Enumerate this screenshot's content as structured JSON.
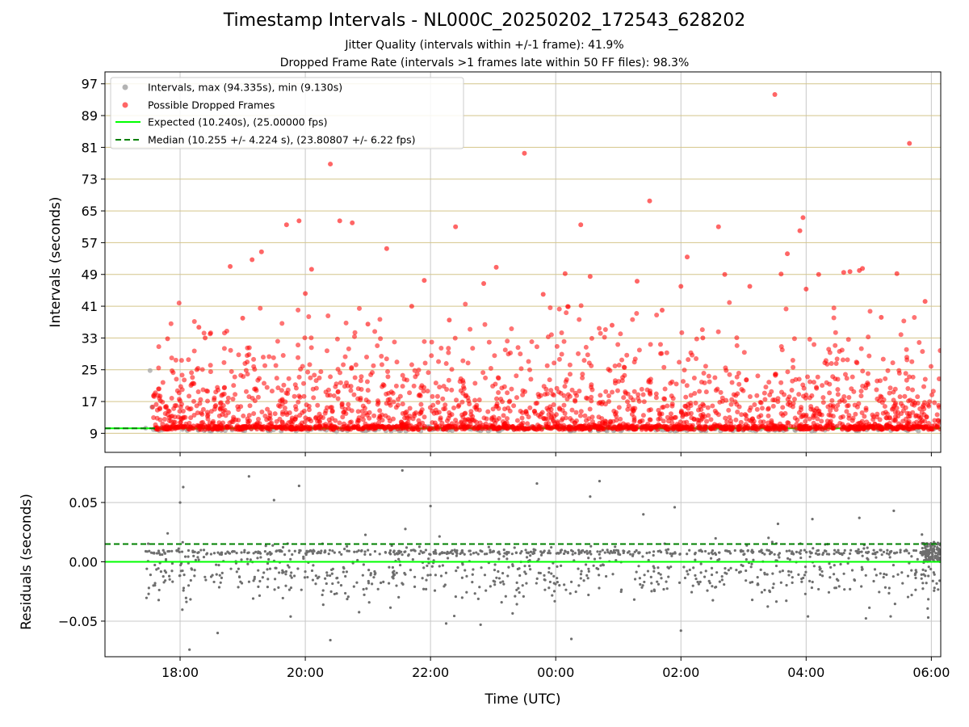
{
  "title": "Timestamp Intervals - NL000C_20250202_172543_628202",
  "subtitle1": "Jitter Quality (intervals within +/-1 frame): 41.9%",
  "subtitle2": "Dropped Frame Rate (intervals >1 frames late within 50 FF files): 98.3%",
  "colors": {
    "interval_points": "#a0a0a0",
    "dropped_points": "#ff0000",
    "expected_line": "#00ff00",
    "median_line": "#008000",
    "residual_points": "#6e6e6e",
    "hgrid_top": "#d4c58a",
    "grid": "#c8c8c8"
  },
  "chart_data": [
    {
      "type": "scatter",
      "panel": "top",
      "xlabel": "",
      "ylabel": "Intervals (seconds)",
      "x_unit": "hours since 00:00 UTC (continuous across midnight)",
      "xlim": [
        -7.2,
        6.15
      ],
      "ylim": [
        4.2,
        100.0
      ],
      "yticks": [
        9,
        17,
        25,
        33,
        41,
        49,
        57,
        65,
        73,
        81,
        89,
        97
      ],
      "ytick_labels": [
        "9",
        "17",
        "25",
        "33",
        "41",
        "49",
        "57",
        "65",
        "73",
        "81",
        "89",
        "97"
      ],
      "grid": "vertical at x ticks, horizontal at y ticks",
      "legend_position": "top-left",
      "legend": [
        "Intervals, max (94.335s), min (9.130s)",
        "Possible Dropped Frames",
        "Expected (10.240s), (25.00000 fps)",
        "Median (10.255 +/- 4.224 s), (23.80807 +/- 6.22 fps)"
      ],
      "series": [
        {
          "name": "Intervals, max (94.335s), min (9.130s)",
          "kind": "scatter",
          "note": "dense band of points along ~10.2 s spanning full range",
          "x": [
            -6.55,
            -6.48,
            -6.45,
            -6.3,
            -5.9,
            -5.5,
            -4.6,
            -3.5,
            -3.1,
            -2.5,
            -1.8,
            -1.2,
            -0.5,
            0.3,
            0.8,
            1.6,
            2.4,
            2.9,
            3.4,
            3.9,
            4.3,
            4.8,
            5.2,
            5.6,
            6.0
          ],
          "y": [
            10.3,
            24.8,
            15.6,
            10.2,
            10.1,
            9.5,
            9.8,
            9.4,
            9.8,
            9.6,
            10.0,
            9.6,
            9.9,
            9.7,
            10.0,
            9.8,
            9.6,
            9.9,
            9.7,
            10.0,
            9.8,
            9.6,
            10.0,
            9.9,
            10.1
          ]
        },
        {
          "name": "Possible Dropped Frames",
          "kind": "scatter",
          "note": "thick band at ~10.3-10.5 s from ~17:37 to end plus scattered outliers",
          "band": {
            "x_from": -6.4,
            "x_to": 6.15,
            "y": 10.4
          },
          "outliers_x": [
            -3.6,
            -3.45,
            -3.25,
            -2.7,
            -1.6,
            -0.5,
            1.5,
            2.6,
            3.5,
            3.9,
            3.95,
            4.9,
            5.65,
            -4.3,
            -4.1,
            -3.9,
            -5.2,
            -4.85,
            -4.7,
            -2.1,
            -1.15,
            -0.95,
            0.15,
            0.4,
            0.55,
            1.3,
            2.0,
            2.1,
            2.7,
            3.6,
            3.7,
            4.2,
            4.6,
            4.85,
            5.45,
            -6.2,
            -5.7,
            -5.6,
            -5.0,
            -4.0,
            -3.0,
            -2.3,
            -1.7,
            -0.2,
            0.9,
            1.7,
            2.35,
            3.1,
            4.0,
            4.7,
            5.2,
            5.9
          ],
          "outliers_y": [
            76.8,
            62.5,
            62.0,
            55.5,
            61.0,
            79.5,
            67.5,
            61.0,
            94.3,
            60.0,
            63.3,
            50.5,
            82.0,
            61.5,
            62.5,
            50.3,
            51.0,
            52.7,
            54.7,
            47.5,
            46.7,
            50.8,
            49.2,
            61.5,
            48.5,
            47.3,
            46.0,
            53.4,
            49.0,
            49.1,
            54.2,
            49.0,
            49.5,
            50.0,
            49.2,
            32.8,
            35.7,
            33.0,
            38.0,
            44.2,
            36.5,
            41.0,
            37.5,
            44.0,
            36.2,
            40.0,
            33.0,
            46.0,
            45.3,
            49.7,
            38.2,
            42.2
          ]
        },
        {
          "name": "Expected (10.240s), (25.00000 fps)",
          "kind": "hline",
          "y": 10.24
        },
        {
          "name": "Median (10.255 +/- 4.224 s), (23.80807 +/- 6.22 fps)",
          "kind": "hline",
          "style": "dashed",
          "y": 10.255
        }
      ]
    },
    {
      "type": "scatter",
      "panel": "bottom",
      "xlabel": "Time (UTC)",
      "ylabel": "Residuals (seconds)",
      "x_unit": "hours since 00:00 UTC (continuous across midnight)",
      "xlim": [
        -7.2,
        6.15
      ],
      "ylim": [
        -0.08,
        0.08
      ],
      "yticks": [
        -0.05,
        0.0,
        0.05
      ],
      "ytick_labels": [
        "−0.05",
        "0.00",
        "0.05"
      ],
      "xticks": [
        -6,
        -4,
        -2,
        0,
        2,
        4,
        6
      ],
      "xtick_labels": [
        "18:00",
        "20:00",
        "22:00",
        "00:00",
        "02:00",
        "04:00",
        "06:00"
      ],
      "grid": "both",
      "series": [
        {
          "name": "",
          "kind": "scatter",
          "note": "residual points, most within -0.035..0.02, with cluster near 0.008",
          "x": [
            -5.95,
            -5.85,
            -5.4,
            -4.9,
            -4.1,
            -3.6,
            -2.45,
            -2.0,
            -1.75,
            -0.3,
            0.25,
            0.55,
            0.7,
            1.9,
            2.0,
            3.55,
            4.1,
            4.85,
            5.35,
            5.4,
            5.85,
            5.95,
            6.05,
            -6.0,
            -4.5,
            -1.2,
            1.4
          ],
          "y": [
            0.063,
            -0.074,
            -0.06,
            0.072,
            0.064,
            -0.066,
            0.077,
            0.047,
            -0.052,
            0.066,
            -0.065,
            0.055,
            0.068,
            0.046,
            -0.058,
            0.032,
            0.036,
            0.037,
            -0.046,
            0.043,
            0.023,
            -0.047,
            -0.022,
            0.05,
            0.052,
            -0.053,
            0.04
          ],
          "note2": "additional dense cloud generated in drawing script from seeded pseudo-random values"
        },
        {
          "name": "",
          "kind": "hline",
          "y": 0.0
        },
        {
          "name": "",
          "kind": "hline",
          "style": "dashed",
          "y": 0.015
        }
      ]
    }
  ]
}
